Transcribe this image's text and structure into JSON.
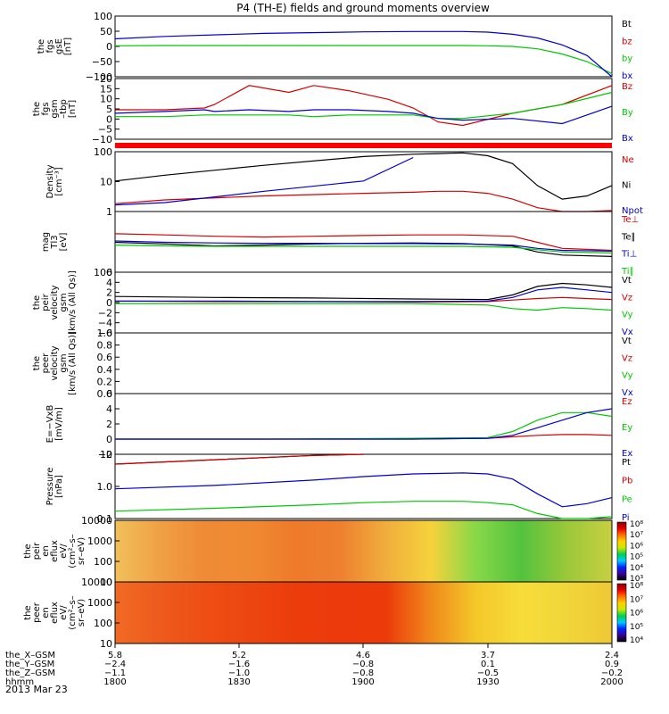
{
  "title": "P4 (TH-E) fields and ground moments overview",
  "date_label": "2013 Mar 23",
  "chart_data": [
    {
      "type": "line",
      "id": "fgs-gse",
      "ylabel": [
        "the",
        "fgs",
        "gsE",
        "[nT]"
      ],
      "ylim": [
        -100,
        100
      ],
      "yticks": [
        "100",
        "50",
        "0",
        "−50",
        "−100"
      ],
      "x": [
        0,
        0.1,
        0.3,
        0.5,
        0.6,
        0.7,
        0.75,
        0.8,
        0.85,
        0.9,
        0.95,
        1.0
      ],
      "series": [
        {
          "name": "Bt",
          "color": "#000000",
          "values": [
            null,
            null,
            null,
            null,
            null,
            null,
            null,
            null,
            null,
            null,
            null,
            null
          ]
        },
        {
          "name": "bz",
          "color": "#d40000",
          "values": [
            null,
            null,
            null,
            null,
            null,
            null,
            null,
            null,
            null,
            null,
            null,
            null
          ]
        },
        {
          "name": "by",
          "color": "#00c800",
          "values": [
            2,
            3,
            3,
            3,
            3,
            3,
            2,
            0,
            -8,
            -25,
            -50,
            -90
          ]
        },
        {
          "name": "bx",
          "color": "#0000d0",
          "values": [
            25,
            33,
            43,
            48,
            49,
            49,
            47,
            40,
            28,
            5,
            -30,
            -100
          ]
        }
      ]
    },
    {
      "type": "line",
      "id": "fgs-gsm",
      "ylabel": [
        "the",
        "fgs",
        "gsm",
        "–tbp",
        "[nT]"
      ],
      "ylim": [
        -15,
        20
      ],
      "yticks": [
        "20",
        "15",
        "10",
        "5",
        "0",
        "−5",
        "−10"
      ],
      "x": [
        0,
        0.1,
        0.18,
        0.2,
        0.27,
        0.35,
        0.4,
        0.47,
        0.55,
        0.6,
        0.65,
        0.7,
        0.8,
        0.9,
        1.0
      ],
      "series": [
        {
          "name": "Bz",
          "color": "#d40000",
          "values": [
            2,
            2,
            3,
            5,
            16,
            12,
            16,
            13,
            8,
            3,
            -5,
            -7,
            0,
            5,
            16
          ]
        },
        {
          "name": "By",
          "color": "#00c800",
          "values": [
            -2,
            -2,
            -1,
            -1,
            -1,
            -1,
            -2,
            -1,
            -1,
            -1,
            -3,
            -3,
            0,
            5,
            12
          ]
        },
        {
          "name": "Bx",
          "color": "#0000d0",
          "values": [
            0,
            1,
            2,
            1,
            2,
            1,
            2,
            2,
            1,
            0,
            -3,
            -4,
            -3,
            -6,
            4
          ]
        }
      ]
    },
    {
      "type": "line",
      "id": "density",
      "scale": "log",
      "ylabel": [
        "Density",
        "[cm⁻³]"
      ],
      "ylim": [
        1,
        200
      ],
      "yticks": [
        "100",
        "10",
        "1"
      ],
      "x": [
        0,
        0.1,
        0.3,
        0.5,
        0.6,
        0.65,
        0.7,
        0.75,
        0.8,
        0.85,
        0.9,
        0.95,
        1.0
      ],
      "series": [
        {
          "name": "Ne",
          "color": "#d40000",
          "values": [
            2,
            2.8,
            4,
            5,
            5.5,
            6,
            6,
            5,
            3,
            1.4,
            0.9,
            0.9,
            1.1
          ]
        },
        {
          "name": "Ni",
          "color": "#000000",
          "values": [
            15,
            25,
            60,
            130,
            160,
            170,
            180,
            140,
            70,
            10,
            3,
            4,
            10
          ]
        },
        {
          "name": "Npot",
          "color": "#0000d0",
          "values": [
            1.8,
            2.2,
            6,
            15,
            120,
            null,
            null,
            null,
            null,
            null,
            null,
            null,
            null
          ]
        }
      ]
    },
    {
      "type": "line",
      "id": "temperature",
      "scale": "log",
      "ylabel": [
        "mag",
        "Tl3",
        "[eV]"
      ],
      "ylim": [
        100,
        100000
      ],
      "yticks": [
        "100"
      ],
      "x": [
        0,
        0.1,
        0.2,
        0.3,
        0.4,
        0.5,
        0.6,
        0.7,
        0.8,
        0.85,
        0.9,
        1.0
      ],
      "series": [
        {
          "name": "Te⊥",
          "color": "#d40000",
          "values": [
            8000,
            7000,
            6000,
            5500,
            6000,
            6500,
            7000,
            7000,
            6000,
            3000,
            1500,
            1200
          ]
        },
        {
          "name": "Te∥",
          "color": "#000000",
          "values": [
            3000,
            2500,
            2000,
            2200,
            2500,
            2700,
            2800,
            2600,
            2000,
            1000,
            700,
            600
          ]
        },
        {
          "name": "Ti⊥",
          "color": "#0000d0",
          "values": [
            3500,
            3000,
            2800,
            2700,
            2700,
            2600,
            2600,
            2500,
            2200,
            1500,
            1200,
            1100
          ]
        },
        {
          "name": "Ti∥",
          "color": "#00c800",
          "values": [
            2200,
            2000,
            1900,
            1900,
            1900,
            1900,
            1900,
            1900,
            1700,
            1300,
            1000,
            900
          ]
        }
      ]
    },
    {
      "type": "line",
      "id": "velocity-gsm",
      "ylabel": [
        "the",
        "peir",
        "velocity",
        "gsm",
        "[km/s (All Qs)]"
      ],
      "ylim": [
        -6,
        6
      ],
      "yticks": [
        "6",
        "4",
        "2",
        "0",
        "−2",
        "−4",
        "−6"
      ],
      "x": [
        0,
        0.2,
        0.4,
        0.6,
        0.75,
        0.8,
        0.85,
        0.9,
        0.95,
        1.0
      ],
      "series": [
        {
          "name": "Vt",
          "color": "#000000",
          "values": [
            1.2,
            1.0,
            0.9,
            0.7,
            0.6,
            1.5,
            3.2,
            3.8,
            3.5,
            3.0
          ]
        },
        {
          "name": "Vz",
          "color": "#d40000",
          "values": [
            0.3,
            0.2,
            0.2,
            0.1,
            0.2,
            0.5,
            0.8,
            1.0,
            0.8,
            0.6
          ]
        },
        {
          "name": "Vy",
          "color": "#00c800",
          "values": [
            -0.2,
            -0.2,
            -0.2,
            -0.2,
            -0.5,
            -1.2,
            -1.5,
            -1.0,
            -1.2,
            -1.5
          ]
        },
        {
          "name": "Vx",
          "color": "#0000d0",
          "values": [
            0.3,
            0.3,
            0.2,
            0.2,
            0.3,
            1.0,
            2.5,
            3.0,
            2.5,
            2.0
          ]
        }
      ]
    },
    {
      "type": "line",
      "id": "velocity-empty",
      "ylabel": [
        "the",
        "peer",
        "velocity",
        "gsm",
        "[km/s (All Qs)]"
      ],
      "ylim": [
        0,
        1
      ],
      "yticks": [
        "1.0",
        "0.8",
        "0.6",
        "0.4",
        "0.2",
        "0.0"
      ],
      "x": [],
      "series": [
        {
          "name": "Vt",
          "color": "#000000",
          "values": []
        },
        {
          "name": "Vz",
          "color": "#d40000",
          "values": []
        },
        {
          "name": "Vy",
          "color": "#00c800",
          "values": []
        },
        {
          "name": "Vx",
          "color": "#0000d0",
          "values": []
        }
      ]
    },
    {
      "type": "line",
      "id": "e-field",
      "ylabel": [
        "E=−VxB",
        "[mV/m]"
      ],
      "ylim": [
        -2,
        6
      ],
      "yticks": [
        "6",
        "4",
        "2",
        "0",
        "−2"
      ],
      "x": [
        0,
        0.3,
        0.6,
        0.75,
        0.8,
        0.85,
        0.9,
        0.95,
        1.0
      ],
      "series": [
        {
          "name": "Ez",
          "color": "#d40000",
          "values": [
            0,
            0,
            0,
            0.1,
            0.3,
            0.5,
            0.6,
            0.6,
            0.5
          ]
        },
        {
          "name": "Ey",
          "color": "#00c800",
          "values": [
            0,
            0,
            0.1,
            0.2,
            1.0,
            2.5,
            3.5,
            3.5,
            3.0
          ]
        },
        {
          "name": "Ex",
          "color": "#0000d0",
          "values": [
            0,
            0,
            0,
            0.1,
            0.5,
            1.5,
            2.5,
            3.5,
            4.0
          ]
        }
      ]
    },
    {
      "type": "line",
      "id": "pressure",
      "scale": "log",
      "ylabel": [
        "Pressure",
        "[nPa]"
      ],
      "ylim": [
        0.05,
        20
      ],
      "yticks": [
        "10",
        "1.0",
        "0.1"
      ],
      "x": [
        0,
        0.2,
        0.4,
        0.5,
        0.6,
        0.7,
        0.75,
        0.8,
        0.85,
        0.9,
        0.95,
        1.0
      ],
      "series": [
        {
          "name": "Pt",
          "color": "#000000",
          "values": [
            8,
            12,
            18,
            20,
            null,
            null,
            null,
            null,
            null,
            null,
            null,
            null
          ]
        },
        {
          "name": "Pb",
          "color": "#d40000",
          "values": [
            8,
            12,
            18,
            20,
            null,
            null,
            null,
            null,
            null,
            null,
            null,
            null
          ]
        },
        {
          "name": "Pe",
          "color": "#00c800",
          "values": [
            0.1,
            0.13,
            0.18,
            0.22,
            0.25,
            0.25,
            0.22,
            0.18,
            0.08,
            0.04,
            0.04,
            0.06
          ]
        },
        {
          "name": "Pi",
          "color": "#0000d0",
          "values": [
            0.8,
            1.1,
            1.8,
            2.5,
            3.2,
            3.5,
            3.2,
            2.0,
            0.5,
            0.15,
            0.2,
            0.35
          ]
        }
      ]
    },
    {
      "type": "heatmap",
      "id": "peir-eflux",
      "ylabel": [
        "the",
        "peir",
        "en",
        "eflux",
        "eV/",
        "(cm²–s–",
        "sr–eV)"
      ],
      "yticks": [
        "10000",
        "1000",
        "100",
        "10"
      ],
      "colorbar_ticks": [
        "10⁸",
        "10⁷",
        "10⁶",
        "10⁵",
        "10⁴",
        "10³"
      ],
      "bands": [
        "#f1c05a",
        "#f0a045",
        "#ef8a35",
        "#f08a32",
        "#ee7a2a",
        "#ee8030",
        "#f0ae3c",
        "#f6d23c",
        "#86d848",
        "#54c23e",
        "#9ac83a",
        "#c8d040"
      ]
    },
    {
      "type": "heatmap",
      "id": "peer-eflux",
      "ylabel": [
        "the",
        "peer",
        "en",
        "eflux",
        "eV/",
        "(cm²–s–",
        "sr–eV)"
      ],
      "yticks": [
        "10000",
        "1000",
        "100",
        "10"
      ],
      "colorbar_ticks": [
        "10⁸",
        "10⁷",
        "10⁶",
        "10⁵",
        "10⁴"
      ],
      "bands": [
        "#f06a24",
        "#ee5a1c",
        "#ee4e14",
        "#ec4610",
        "#ec3c0c",
        "#ec3a0c",
        "#ec3a0a",
        "#f08a1c",
        "#f4c829",
        "#f7dc3a",
        "#f0d63a",
        "#eec835"
      ]
    }
  ],
  "x_axis": {
    "rows": [
      {
        "label": "the_X–GSM",
        "values": [
          "5.8",
          "5.2",
          "4.6",
          "3.7",
          "2.4"
        ]
      },
      {
        "label": "the_Y–GSM",
        "values": [
          "−2.4",
          "−1.6",
          "−0.8",
          "0.1",
          "0.9"
        ]
      },
      {
        "label": "the_Z–GSM",
        "values": [
          "−1.1",
          "−1.0",
          "−0.8",
          "−0.5",
          "−0.2"
        ]
      },
      {
        "label": "hhmm",
        "values": [
          "1800",
          "1830",
          "1900",
          "1930",
          "2000"
        ]
      }
    ]
  }
}
